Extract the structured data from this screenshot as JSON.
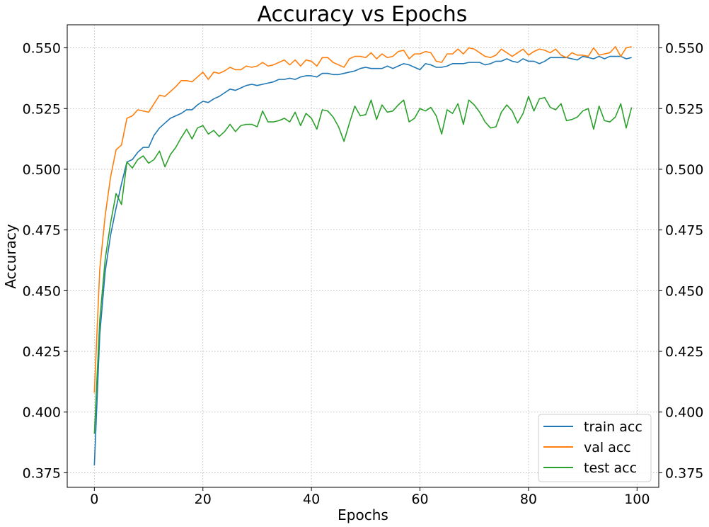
{
  "chart_data": {
    "type": "line",
    "title": "Accuracy vs Epochs",
    "xlabel": "Epochs",
    "ylabel": "Accuracy",
    "xlim": [
      -5,
      104
    ],
    "ylim": [
      0.369,
      0.5595
    ],
    "xticks": [
      0,
      20,
      40,
      60,
      80,
      100
    ],
    "xtick_labels": [
      "0",
      "20",
      "40",
      "60",
      "80",
      "100"
    ],
    "yticks": [
      0.375,
      0.4,
      0.425,
      0.45,
      0.475,
      0.5,
      0.525,
      0.55
    ],
    "ytick_labels": [
      "0.375",
      "0.400",
      "0.425",
      "0.450",
      "0.475",
      "0.500",
      "0.525",
      "0.550"
    ],
    "grid": true,
    "legend_position": "bottom-right",
    "series": [
      {
        "name": "train acc",
        "color": "#1f77b4",
        "values": [
          0.378,
          0.432,
          0.458,
          0.473,
          0.484,
          0.494,
          0.503,
          0.504,
          0.507,
          0.509,
          0.509,
          0.514,
          0.517,
          0.519,
          0.521,
          0.522,
          0.523,
          0.5245,
          0.5245,
          0.5265,
          0.528,
          0.5275,
          0.529,
          0.53,
          0.5315,
          0.533,
          0.5325,
          0.5335,
          0.5345,
          0.535,
          0.5345,
          0.535,
          0.5355,
          0.536,
          0.537,
          0.537,
          0.5375,
          0.537,
          0.538,
          0.5385,
          0.5385,
          0.538,
          0.5395,
          0.5395,
          0.539,
          0.539,
          0.5395,
          0.54,
          0.5405,
          0.5415,
          0.542,
          0.5415,
          0.5415,
          0.5415,
          0.5425,
          0.5415,
          0.5425,
          0.5435,
          0.543,
          0.542,
          0.541,
          0.5435,
          0.543,
          0.542,
          0.542,
          0.5425,
          0.5435,
          0.5435,
          0.5435,
          0.544,
          0.544,
          0.544,
          0.543,
          0.5435,
          0.5445,
          0.5445,
          0.5455,
          0.5445,
          0.544,
          0.5455,
          0.5445,
          0.5445,
          0.5435,
          0.5445,
          0.546,
          0.546,
          0.546,
          0.546,
          0.5455,
          0.545,
          0.5465,
          0.546,
          0.5455,
          0.5465,
          0.5455,
          0.5465,
          0.5465,
          0.5465,
          0.5455,
          0.546
        ]
      },
      {
        "name": "val acc",
        "color": "#ff7f0e",
        "values": [
          0.408,
          0.459,
          0.481,
          0.497,
          0.508,
          0.51,
          0.521,
          0.522,
          0.5245,
          0.524,
          0.5235,
          0.527,
          0.5305,
          0.53,
          0.532,
          0.534,
          0.5365,
          0.5365,
          0.536,
          0.538,
          0.54,
          0.537,
          0.54,
          0.5395,
          0.5405,
          0.542,
          0.541,
          0.541,
          0.5425,
          0.542,
          0.5425,
          0.544,
          0.5425,
          0.543,
          0.544,
          0.545,
          0.543,
          0.545,
          0.5425,
          0.545,
          0.5445,
          0.5425,
          0.546,
          0.546,
          0.544,
          0.543,
          0.542,
          0.5455,
          0.5465,
          0.5465,
          0.546,
          0.548,
          0.5455,
          0.5475,
          0.546,
          0.5465,
          0.5485,
          0.549,
          0.5455,
          0.5475,
          0.5475,
          0.5485,
          0.548,
          0.5445,
          0.544,
          0.5475,
          0.5475,
          0.5495,
          0.5475,
          0.55,
          0.5495,
          0.548,
          0.5465,
          0.546,
          0.547,
          0.5495,
          0.548,
          0.5465,
          0.548,
          0.5495,
          0.547,
          0.5485,
          0.5495,
          0.549,
          0.548,
          0.5495,
          0.547,
          0.546,
          0.548,
          0.547,
          0.547,
          0.5465,
          0.55,
          0.547,
          0.5475,
          0.548,
          0.5505,
          0.5465,
          0.55,
          0.5505
        ]
      },
      {
        "name": "test acc",
        "color": "#2ca02c",
        "values": [
          0.391,
          0.438,
          0.463,
          0.478,
          0.49,
          0.4855,
          0.503,
          0.5005,
          0.504,
          0.5055,
          0.5025,
          0.504,
          0.5075,
          0.501,
          0.506,
          0.509,
          0.513,
          0.5165,
          0.5125,
          0.517,
          0.518,
          0.5145,
          0.516,
          0.5135,
          0.5155,
          0.5185,
          0.5155,
          0.518,
          0.5185,
          0.5185,
          0.5175,
          0.524,
          0.5195,
          0.5195,
          0.52,
          0.521,
          0.5195,
          0.5235,
          0.518,
          0.523,
          0.521,
          0.5165,
          0.5245,
          0.524,
          0.5215,
          0.5175,
          0.5115,
          0.519,
          0.526,
          0.522,
          0.5225,
          0.5285,
          0.5205,
          0.5265,
          0.5235,
          0.524,
          0.5265,
          0.5285,
          0.5195,
          0.521,
          0.525,
          0.524,
          0.5255,
          0.522,
          0.5145,
          0.5245,
          0.523,
          0.527,
          0.5185,
          0.5285,
          0.5265,
          0.5235,
          0.5195,
          0.517,
          0.5175,
          0.5235,
          0.5265,
          0.524,
          0.519,
          0.523,
          0.53,
          0.524,
          0.529,
          0.5295,
          0.5255,
          0.5245,
          0.527,
          0.52,
          0.5205,
          0.5215,
          0.524,
          0.525,
          0.5165,
          0.526,
          0.52,
          0.5195,
          0.5215,
          0.527,
          0.517,
          0.5255
        ]
      }
    ]
  }
}
